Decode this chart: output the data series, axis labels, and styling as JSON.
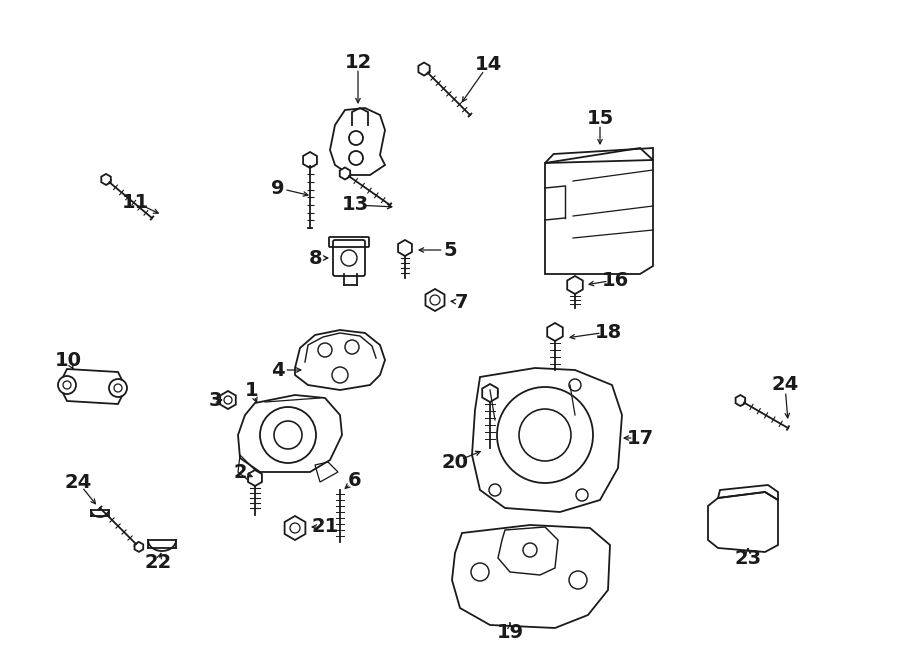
{
  "bg_color": "#ffffff",
  "line_color": "#1a1a1a",
  "lw": 1.3,
  "figsize": [
    9.0,
    6.61
  ],
  "dpi": 100
}
